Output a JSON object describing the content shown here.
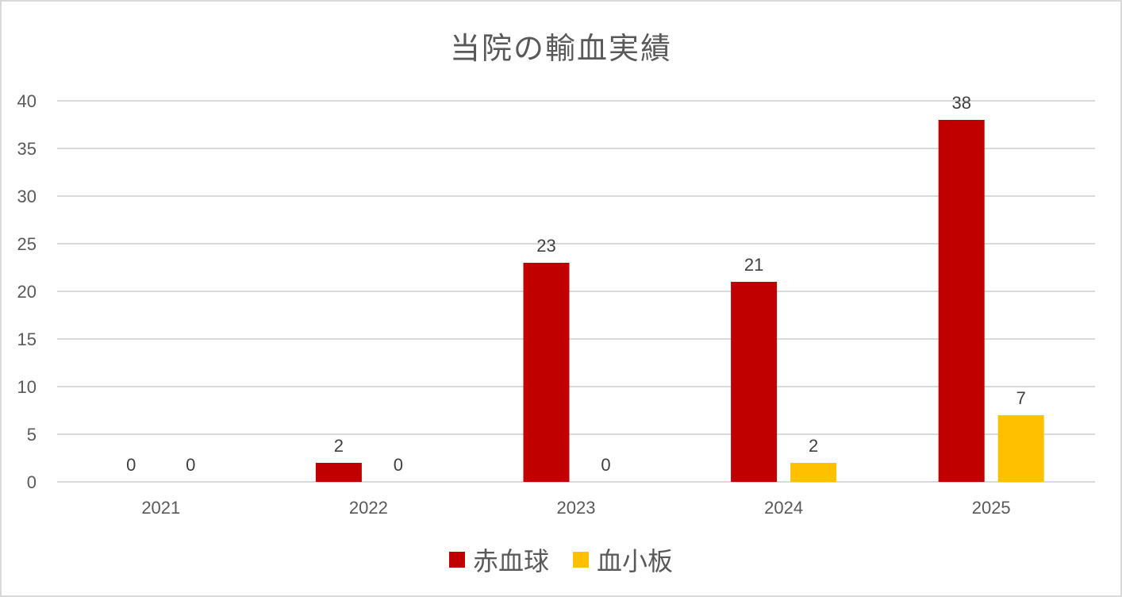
{
  "chart_data": {
    "type": "bar",
    "title": "当院の輸血実績",
    "xlabel": "",
    "ylabel": "",
    "categories": [
      "2021",
      "2022",
      "2023",
      "2024",
      "2025"
    ],
    "series": [
      {
        "name": "赤血球",
        "values": [
          0,
          2,
          23,
          21,
          38
        ],
        "color": "#c00000"
      },
      {
        "name": "血小板",
        "values": [
          0,
          0,
          0,
          2,
          7
        ],
        "color": "#ffc000"
      }
    ],
    "ylim": [
      0,
      40
    ],
    "yticks": [
      0,
      5,
      10,
      15,
      20,
      25,
      30,
      35,
      40
    ],
    "grid": true,
    "legend_position": "bottom",
    "data_labels": true
  }
}
